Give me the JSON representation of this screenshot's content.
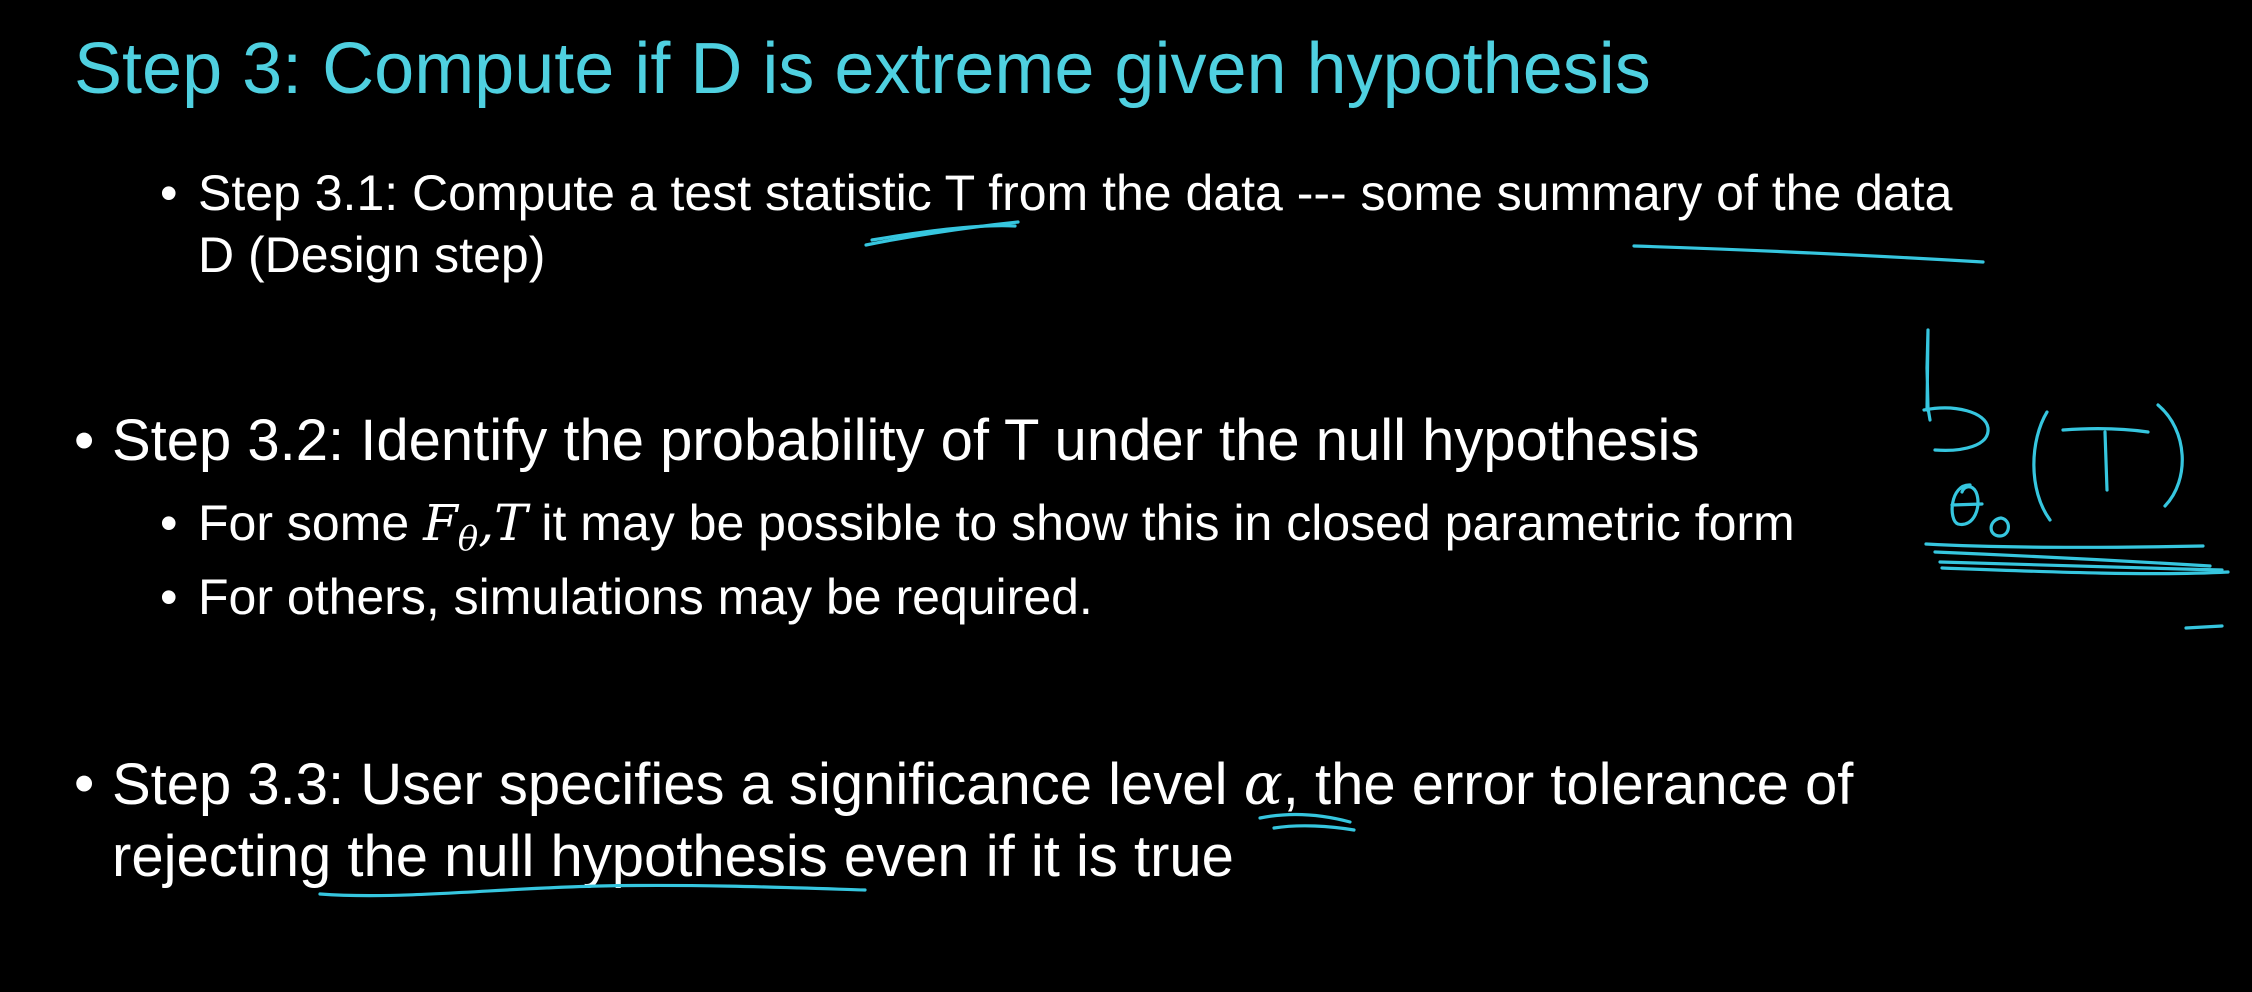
{
  "title": "Step 3: Compute if D is extreme given hypothesis",
  "bullet_glyph": "•",
  "step_3_1": {
    "text_line1": "Step 3.1: Compute a test statistic T from the data --- some summary of the data",
    "text_line2": "D (Design step)"
  },
  "step_3_2": {
    "text": "Step 3.2: Identify the probability of T  under the null hypothesis",
    "sub1": {
      "prefix": "For some ",
      "math_F": "F",
      "math_sub": "θ",
      "math_comma": ",",
      "math_T": "T",
      "suffix": " it may be possible to show this in closed parametric form"
    },
    "sub2": "For others, simulations may be required."
  },
  "step_3_3": {
    "prefix": "Step 3.3: User specifies a significance level ",
    "math_alpha": "α",
    "suffix_line1": ", the error tolerance of",
    "text_line2": "rejecting the null hypothesis even if it is true"
  },
  "annotation": {
    "label": "P θ0 (T)",
    "ink_color": "#36c6df"
  },
  "colors": {
    "background": "#000000",
    "title": "#4fd0e0",
    "body_text": "#ffffff"
  }
}
